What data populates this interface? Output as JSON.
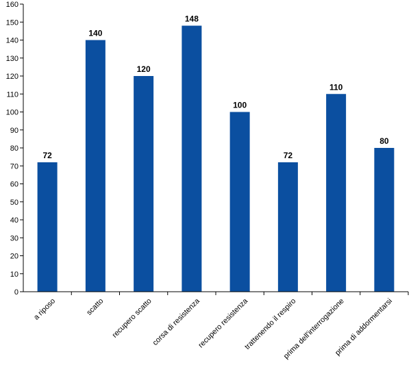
{
  "chart_data": {
    "type": "bar",
    "categories": [
      "a riposo",
      "scatto",
      "recupero scatto",
      "corsa di resistenza",
      "recupero resistenza",
      "trattenendo il respiro",
      "prima dell'interrogazione",
      "prima di addormentarsi"
    ],
    "values": [
      72,
      140,
      120,
      148,
      100,
      72,
      110,
      80
    ],
    "data_labels": [
      "72",
      "140",
      "120",
      "148",
      "100",
      "72",
      "110",
      "80"
    ],
    "y_ticks": [
      0,
      10,
      20,
      30,
      40,
      50,
      60,
      70,
      80,
      90,
      100,
      110,
      120,
      130,
      140,
      150,
      160
    ],
    "ylim": [
      0,
      160
    ],
    "grid": false,
    "legend": "none",
    "colors": {
      "bar": "#0b4fa0",
      "axis": "#000000",
      "text": "#000000"
    }
  }
}
